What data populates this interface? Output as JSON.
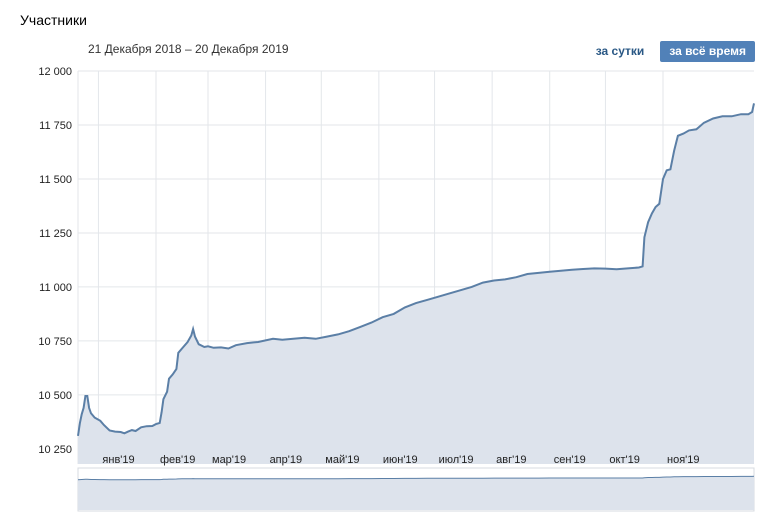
{
  "widget": {
    "title": "Участники",
    "date_range": "21 Декабря 2018 – 20 Декабря 2019",
    "tabs": [
      {
        "label": "за сутки",
        "active": false
      },
      {
        "label": "за всё время",
        "active": true
      }
    ]
  },
  "colors": {
    "line": "#5b7fa6",
    "fill": "#dde3ec",
    "grid": "#e3e6ea",
    "accent": "#5181b8"
  },
  "chart_data": {
    "type": "area",
    "title": "",
    "xlabel": "",
    "ylabel": "",
    "x_range": [
      "2018-12-21",
      "2019-12-20"
    ],
    "ylim": [
      10180,
      12000
    ],
    "y_ticks": [
      10250,
      10500,
      10750,
      11000,
      11250,
      11500,
      11750,
      12000
    ],
    "y_tick_labels": [
      "10 250",
      "10 500",
      "10 750",
      "11 000",
      "11 250",
      "11 500",
      "11 750",
      "12 000"
    ],
    "x_ticks": [
      {
        "date": "2019-01-01",
        "label": "янв'19"
      },
      {
        "date": "2019-02-01",
        "label": "фев'19"
      },
      {
        "date": "2019-03-01",
        "label": "мар'19"
      },
      {
        "date": "2019-04-01",
        "label": "апр'19"
      },
      {
        "date": "2019-05-01",
        "label": "май'19"
      },
      {
        "date": "2019-06-01",
        "label": "июн'19"
      },
      {
        "date": "2019-07-01",
        "label": "июл'19"
      },
      {
        "date": "2019-08-01",
        "label": "авг'19"
      },
      {
        "date": "2019-09-01",
        "label": "сен'19"
      },
      {
        "date": "2019-10-01",
        "label": "окт'19"
      },
      {
        "date": "2019-11-01",
        "label": "ноя'19"
      }
    ],
    "grid": true,
    "series": [
      {
        "points": [
          [
            "2018-12-21",
            10310
          ],
          [
            "2018-12-22",
            10370
          ],
          [
            "2018-12-23",
            10410
          ],
          [
            "2018-12-24",
            10440
          ],
          [
            "2018-12-25",
            10495
          ],
          [
            "2018-12-26",
            10495
          ],
          [
            "2018-12-27",
            10440
          ],
          [
            "2018-12-28",
            10415
          ],
          [
            "2018-12-30",
            10395
          ],
          [
            "2019-01-02",
            10380
          ],
          [
            "2019-01-04",
            10360
          ],
          [
            "2019-01-07",
            10335
          ],
          [
            "2019-01-10",
            10330
          ],
          [
            "2019-01-13",
            10328
          ],
          [
            "2019-01-15",
            10322
          ],
          [
            "2019-01-17",
            10330
          ],
          [
            "2019-01-19",
            10337
          ],
          [
            "2019-01-21",
            10333
          ],
          [
            "2019-01-24",
            10350
          ],
          [
            "2019-01-27",
            10355
          ],
          [
            "2019-01-30",
            10356
          ],
          [
            "2019-02-01",
            10365
          ],
          [
            "2019-02-03",
            10370
          ],
          [
            "2019-02-04",
            10420
          ],
          [
            "2019-02-05",
            10480
          ],
          [
            "2019-02-07",
            10515
          ],
          [
            "2019-02-08",
            10575
          ],
          [
            "2019-02-10",
            10595
          ],
          [
            "2019-02-12",
            10620
          ],
          [
            "2019-02-13",
            10695
          ],
          [
            "2019-02-15",
            10715
          ],
          [
            "2019-02-18",
            10745
          ],
          [
            "2019-02-20",
            10775
          ],
          [
            "2019-02-21",
            10805
          ],
          [
            "2019-02-22",
            10770
          ],
          [
            "2019-02-24",
            10735
          ],
          [
            "2019-02-27",
            10722
          ],
          [
            "2019-03-01",
            10725
          ],
          [
            "2019-03-04",
            10718
          ],
          [
            "2019-03-08",
            10720
          ],
          [
            "2019-03-12",
            10715
          ],
          [
            "2019-03-16",
            10730
          ],
          [
            "2019-03-22",
            10740
          ],
          [
            "2019-03-28",
            10745
          ],
          [
            "2019-04-05",
            10760
          ],
          [
            "2019-04-10",
            10755
          ],
          [
            "2019-04-16",
            10760
          ],
          [
            "2019-04-22",
            10765
          ],
          [
            "2019-04-28",
            10760
          ],
          [
            "2019-05-04",
            10770
          ],
          [
            "2019-05-10",
            10780
          ],
          [
            "2019-05-16",
            10795
          ],
          [
            "2019-05-22",
            10815
          ],
          [
            "2019-05-28",
            10835
          ],
          [
            "2019-06-03",
            10860
          ],
          [
            "2019-06-09",
            10875
          ],
          [
            "2019-06-15",
            10905
          ],
          [
            "2019-06-21",
            10925
          ],
          [
            "2019-06-27",
            10940
          ],
          [
            "2019-07-03",
            10955
          ],
          [
            "2019-07-09",
            10970
          ],
          [
            "2019-07-15",
            10985
          ],
          [
            "2019-07-21",
            11000
          ],
          [
            "2019-07-27",
            11020
          ],
          [
            "2019-08-02",
            11030
          ],
          [
            "2019-08-08",
            11035
          ],
          [
            "2019-08-14",
            11045
          ],
          [
            "2019-08-20",
            11060
          ],
          [
            "2019-08-26",
            11065
          ],
          [
            "2019-09-01",
            11070
          ],
          [
            "2019-09-07",
            11075
          ],
          [
            "2019-09-13",
            11080
          ],
          [
            "2019-09-19",
            11083
          ],
          [
            "2019-09-25",
            11086
          ],
          [
            "2019-10-01",
            11085
          ],
          [
            "2019-10-07",
            11082
          ],
          [
            "2019-10-13",
            11086
          ],
          [
            "2019-10-19",
            11090
          ],
          [
            "2019-10-21",
            11095
          ],
          [
            "2019-10-22",
            11230
          ],
          [
            "2019-10-24",
            11300
          ],
          [
            "2019-10-26",
            11340
          ],
          [
            "2019-10-28",
            11370
          ],
          [
            "2019-10-30",
            11385
          ],
          [
            "2019-11-01",
            11500
          ],
          [
            "2019-11-03",
            11540
          ],
          [
            "2019-11-05",
            11545
          ],
          [
            "2019-11-07",
            11630
          ],
          [
            "2019-11-09",
            11700
          ],
          [
            "2019-11-12",
            11710
          ],
          [
            "2019-11-15",
            11725
          ],
          [
            "2019-11-19",
            11730
          ],
          [
            "2019-11-23",
            11760
          ],
          [
            "2019-11-28",
            11780
          ],
          [
            "2019-12-03",
            11790
          ],
          [
            "2019-12-08",
            11790
          ],
          [
            "2019-12-13",
            11800
          ],
          [
            "2019-12-17",
            11800
          ],
          [
            "2019-12-19",
            11810
          ],
          [
            "2019-12-20",
            11850
          ]
        ]
      }
    ]
  }
}
